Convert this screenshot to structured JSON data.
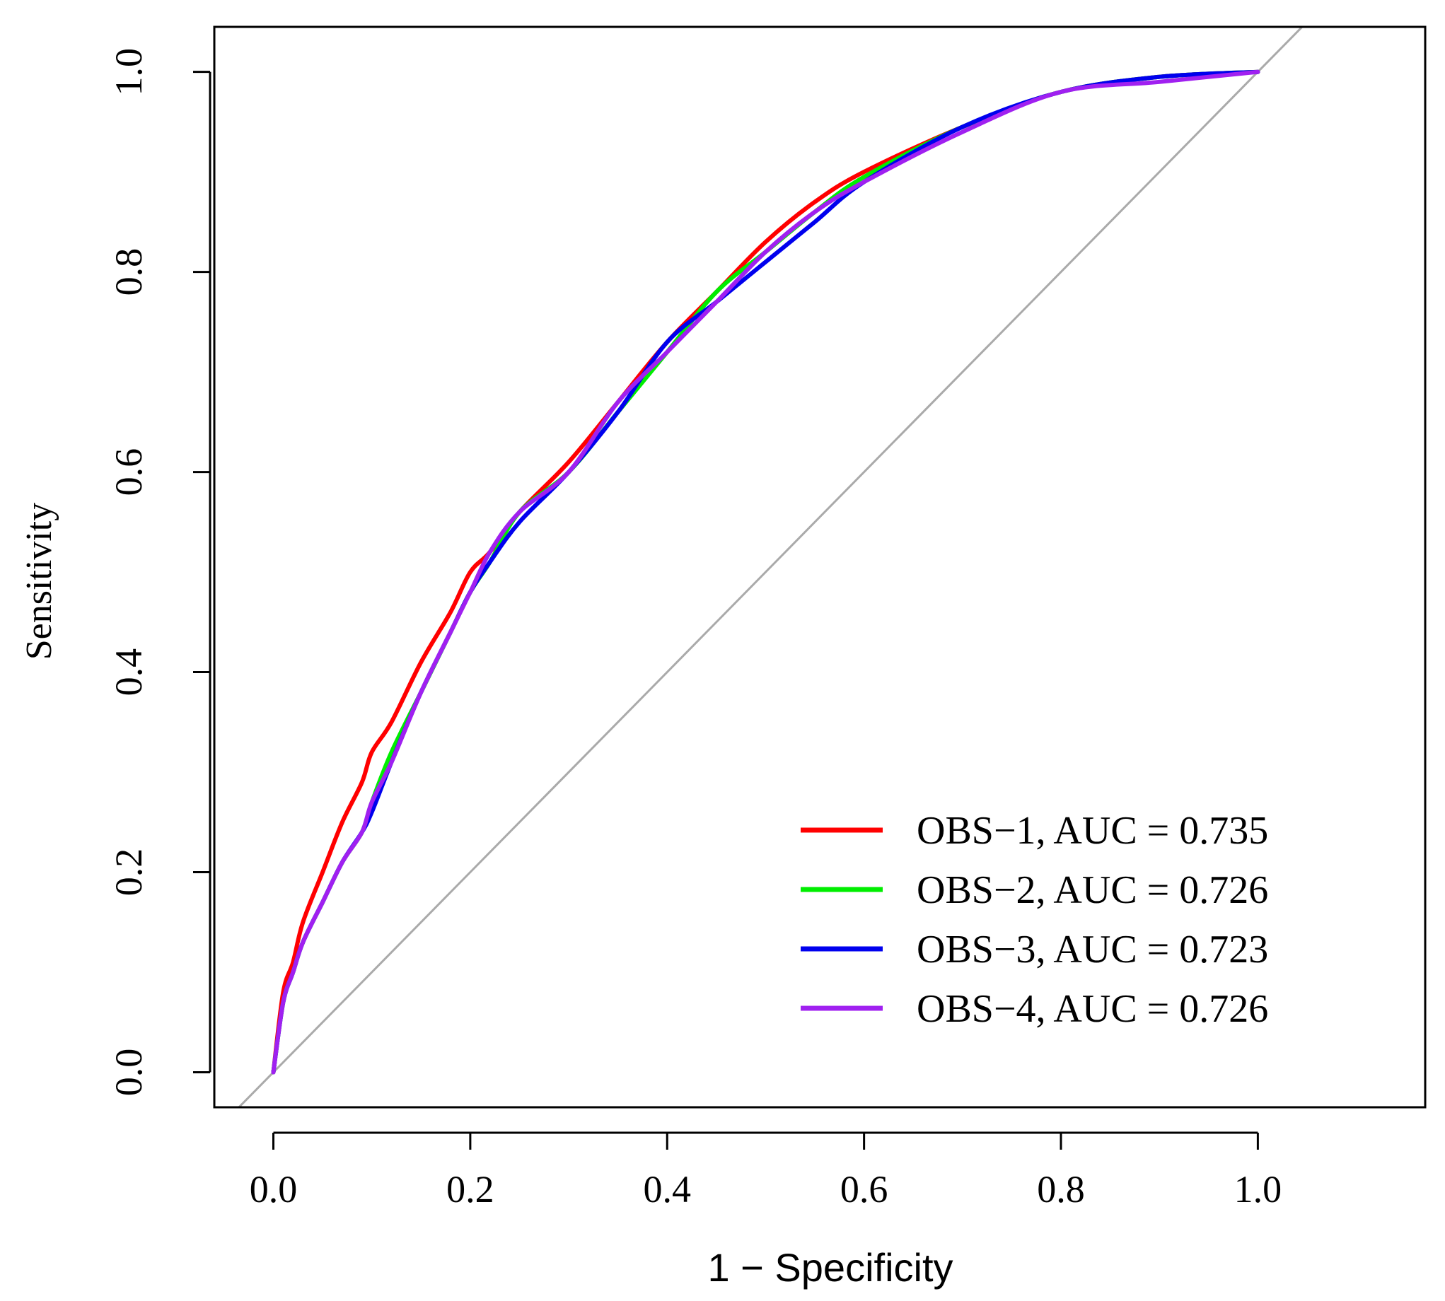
{
  "chart_data": {
    "type": "line",
    "title": "",
    "xlabel": "1 − Specificity",
    "ylabel": "Sensitivity",
    "xlim": [
      -0.06,
      1.17
    ],
    "ylim": [
      -0.035,
      1.045
    ],
    "xticks": [
      0.0,
      0.2,
      0.4,
      0.6,
      0.8,
      1.0
    ],
    "xtick_labels": [
      "0.0",
      "0.2",
      "0.4",
      "0.6",
      "0.8",
      "1.0"
    ],
    "yticks": [
      0.0,
      0.2,
      0.4,
      0.6,
      0.8,
      1.0
    ],
    "ytick_labels": [
      "0.0",
      "0.2",
      "0.4",
      "0.6",
      "0.8",
      "1.0"
    ],
    "grid": false,
    "legend_position": "bottom-right",
    "reference_line": {
      "name": "chance diagonal",
      "color": "#aaaaaa",
      "x": [
        0,
        1
      ],
      "y": [
        0,
        1
      ]
    },
    "series": [
      {
        "name": "OBS−1, AUC = 0.735",
        "color": "#ff0000",
        "x": [
          0.0,
          0.01,
          0.02,
          0.03,
          0.05,
          0.07,
          0.09,
          0.1,
          0.12,
          0.15,
          0.18,
          0.2,
          0.22,
          0.25,
          0.3,
          0.35,
          0.4,
          0.45,
          0.5,
          0.55,
          0.6,
          0.7,
          0.8,
          0.9,
          1.0
        ],
        "y": [
          0.0,
          0.08,
          0.11,
          0.15,
          0.2,
          0.25,
          0.29,
          0.32,
          0.35,
          0.41,
          0.46,
          0.5,
          0.52,
          0.56,
          0.61,
          0.67,
          0.73,
          0.78,
          0.83,
          0.87,
          0.9,
          0.945,
          0.98,
          0.995,
          1.0
        ]
      },
      {
        "name": "OBS−2, AUC = 0.726",
        "color": "#00ee00",
        "x": [
          0.0,
          0.01,
          0.02,
          0.03,
          0.05,
          0.07,
          0.09,
          0.1,
          0.12,
          0.15,
          0.18,
          0.2,
          0.22,
          0.25,
          0.3,
          0.35,
          0.4,
          0.45,
          0.5,
          0.55,
          0.6,
          0.7,
          0.8,
          0.9,
          1.0
        ],
        "y": [
          0.0,
          0.07,
          0.1,
          0.13,
          0.17,
          0.21,
          0.24,
          0.27,
          0.32,
          0.38,
          0.44,
          0.48,
          0.51,
          0.56,
          0.6,
          0.66,
          0.72,
          0.78,
          0.82,
          0.86,
          0.895,
          0.945,
          0.98,
          0.995,
          1.0
        ]
      },
      {
        "name": "OBS−3, AUC = 0.723",
        "color": "#0000ee",
        "x": [
          0.0,
          0.01,
          0.02,
          0.03,
          0.05,
          0.07,
          0.09,
          0.1,
          0.12,
          0.15,
          0.18,
          0.2,
          0.22,
          0.25,
          0.3,
          0.35,
          0.4,
          0.45,
          0.5,
          0.55,
          0.6,
          0.7,
          0.8,
          0.9,
          1.0
        ],
        "y": [
          0.0,
          0.07,
          0.1,
          0.13,
          0.17,
          0.21,
          0.24,
          0.26,
          0.31,
          0.38,
          0.44,
          0.48,
          0.51,
          0.55,
          0.6,
          0.66,
          0.73,
          0.77,
          0.81,
          0.85,
          0.89,
          0.945,
          0.98,
          0.995,
          1.0
        ]
      },
      {
        "name": "OBS−4, AUC = 0.726",
        "color": "#a020f0",
        "x": [
          0.0,
          0.01,
          0.02,
          0.03,
          0.05,
          0.07,
          0.09,
          0.1,
          0.12,
          0.15,
          0.18,
          0.2,
          0.22,
          0.25,
          0.3,
          0.35,
          0.4,
          0.45,
          0.5,
          0.55,
          0.6,
          0.7,
          0.8,
          0.9,
          1.0
        ],
        "y": [
          0.0,
          0.07,
          0.1,
          0.13,
          0.17,
          0.21,
          0.24,
          0.27,
          0.31,
          0.38,
          0.44,
          0.48,
          0.52,
          0.56,
          0.6,
          0.67,
          0.72,
          0.77,
          0.82,
          0.86,
          0.89,
          0.94,
          0.98,
          0.99,
          1.0
        ]
      }
    ]
  }
}
